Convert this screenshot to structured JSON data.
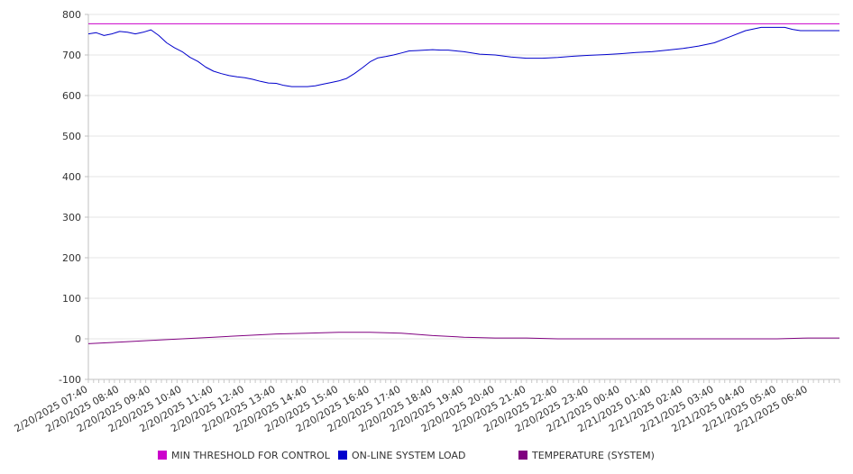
{
  "chart_data": {
    "type": "line",
    "title": "",
    "xlabel": "",
    "ylabel": "",
    "ylim": [
      -100,
      800
    ],
    "y_ticks": [
      "800",
      "700",
      "600",
      "500",
      "400",
      "300",
      "200",
      "100",
      "0",
      "-100"
    ],
    "y_tick_values": [
      800,
      700,
      600,
      500,
      400,
      300,
      200,
      100,
      0,
      -100
    ],
    "x_range_hours": [
      0,
      24
    ],
    "x_tick_labels": [
      "2/20/2025 07:40",
      "2/20/2025 08:40",
      "2/20/2025 09:40",
      "2/20/2025 10:40",
      "2/20/2025 11:40",
      "2/20/2025 12:40",
      "2/20/2025 13:40",
      "2/20/2025 14:40",
      "2/20/2025 15:40",
      "2/20/2025 16:40",
      "2/20/2025 17:40",
      "2/20/2025 18:40",
      "2/20/2025 19:40",
      "2/20/2025 20:40",
      "2/20/2025 21:40",
      "2/20/2025 22:40",
      "2/20/2025 23:40",
      "2/21/2025 00:40",
      "2/21/2025 01:40",
      "2/21/2025 02:40",
      "2/21/2025 03:40",
      "2/21/2025 04:40",
      "2/21/2025 05:40",
      "2/21/2025 06:40"
    ],
    "x_tick_hours": [
      0,
      1,
      2,
      3,
      4,
      5,
      6,
      7,
      8,
      9,
      10,
      11,
      12,
      13,
      14,
      15,
      16,
      17,
      18,
      19,
      20,
      21,
      22,
      23
    ],
    "grid": "horizontal",
    "legend_position": "bottom",
    "series": [
      {
        "name": "MIN THRESHOLD FOR CONTROL",
        "color": "#cc00cc",
        "x": [
          0,
          24
        ],
        "values": [
          777,
          777
        ]
      },
      {
        "name": "ON-LINE SYSTEM LOAD",
        "color": "#0000cc",
        "x": [
          0,
          0.25,
          0.5,
          0.75,
          1.0,
          1.25,
          1.5,
          1.75,
          2.0,
          2.25,
          2.5,
          2.75,
          3.0,
          3.25,
          3.5,
          3.75,
          4.0,
          4.25,
          4.5,
          4.75,
          5.0,
          5.25,
          5.5,
          5.75,
          6.0,
          6.25,
          6.5,
          6.75,
          7.0,
          7.25,
          7.5,
          7.75,
          8.0,
          8.25,
          8.5,
          8.75,
          9.0,
          9.25,
          9.5,
          9.75,
          10.0,
          10.25,
          10.5,
          10.75,
          11.0,
          11.25,
          11.5,
          11.75,
          12.0,
          12.5,
          13.0,
          13.5,
          14.0,
          14.5,
          15.0,
          15.5,
          16.0,
          16.5,
          17.0,
          17.5,
          18.0,
          18.5,
          19.0,
          19.5,
          20.0,
          20.5,
          21.0,
          21.5,
          22.0,
          22.25,
          22.5,
          22.75,
          23.0,
          23.25,
          23.5,
          23.75,
          24.0
        ],
        "values": [
          752,
          755,
          748,
          752,
          758,
          756,
          752,
          756,
          762,
          748,
          730,
          718,
          708,
          694,
          684,
          670,
          660,
          654,
          649,
          646,
          644,
          640,
          635,
          631,
          630,
          625,
          622,
          622,
          622,
          624,
          628,
          632,
          636,
          642,
          654,
          668,
          683,
          693,
          696,
          700,
          705,
          710,
          711,
          712,
          713,
          712,
          712,
          710,
          708,
          702,
          700,
          695,
          692,
          692,
          694,
          697,
          699,
          701,
          703,
          706,
          708,
          712,
          716,
          722,
          730,
          745,
          760,
          768,
          768,
          768,
          763,
          760,
          760,
          760,
          760,
          760,
          760
        ]
      },
      {
        "name": "TEMPERATURE (SYSTEM)",
        "color": "#800080",
        "x": [
          0,
          1,
          2,
          3,
          4,
          5,
          6,
          7,
          8,
          9,
          10,
          11,
          12,
          13,
          14,
          15,
          16,
          17,
          18,
          19,
          20,
          21,
          22,
          23,
          24
        ],
        "values": [
          -12,
          -8,
          -4,
          0,
          4,
          8,
          12,
          14,
          16,
          16,
          14,
          8,
          4,
          2,
          2,
          0,
          0,
          0,
          0,
          0,
          0,
          0,
          0,
          2,
          2
        ]
      }
    ]
  }
}
